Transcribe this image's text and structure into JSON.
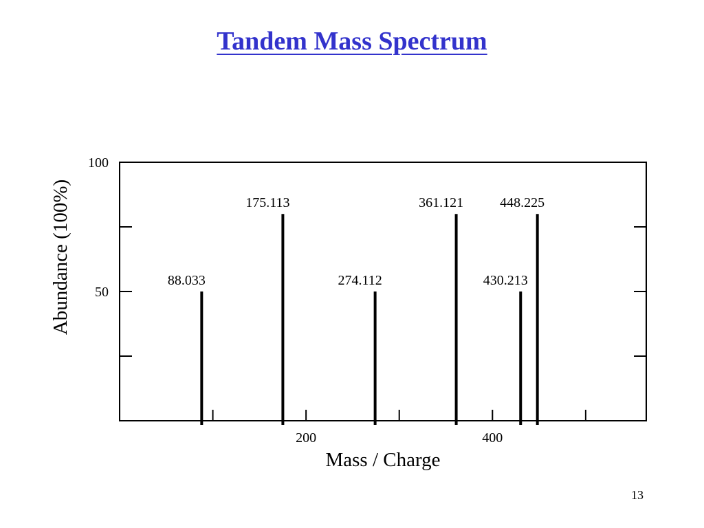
{
  "slide": {
    "title": "Tandem Mass Spectrum",
    "page_number": "13"
  },
  "chart_data": {
    "type": "bar",
    "title": "",
    "xlabel": "Mass / Charge",
    "ylabel": "Abundance (100%)",
    "xlim": [
      0,
      565
    ],
    "ylim": [
      0,
      100
    ],
    "x_tick_labels": [
      {
        "value": 200,
        "label": "200"
      },
      {
        "value": 400,
        "label": "400"
      }
    ],
    "x_minor_ticks": [
      100,
      200,
      300,
      400,
      500
    ],
    "y_tick_labels": [
      {
        "value": 100,
        "label": "100"
      },
      {
        "value": 50,
        "label": "50"
      }
    ],
    "y_minor_ticks": [
      25,
      50,
      75
    ],
    "grid": false,
    "peaks": [
      {
        "mz": 88.033,
        "abundance": 50,
        "label": "88.033"
      },
      {
        "mz": 175.113,
        "abundance": 80,
        "label": "175.113"
      },
      {
        "mz": 274.112,
        "abundance": 50,
        "label": "274.112"
      },
      {
        "mz": 361.121,
        "abundance": 80,
        "label": "361.121"
      },
      {
        "mz": 430.213,
        "abundance": 50,
        "label": "430.213"
      },
      {
        "mz": 448.225,
        "abundance": 80,
        "label": "448.225"
      }
    ],
    "colors": {
      "axis": "#000000",
      "peak": "#000000",
      "title": "#3333cc"
    }
  }
}
